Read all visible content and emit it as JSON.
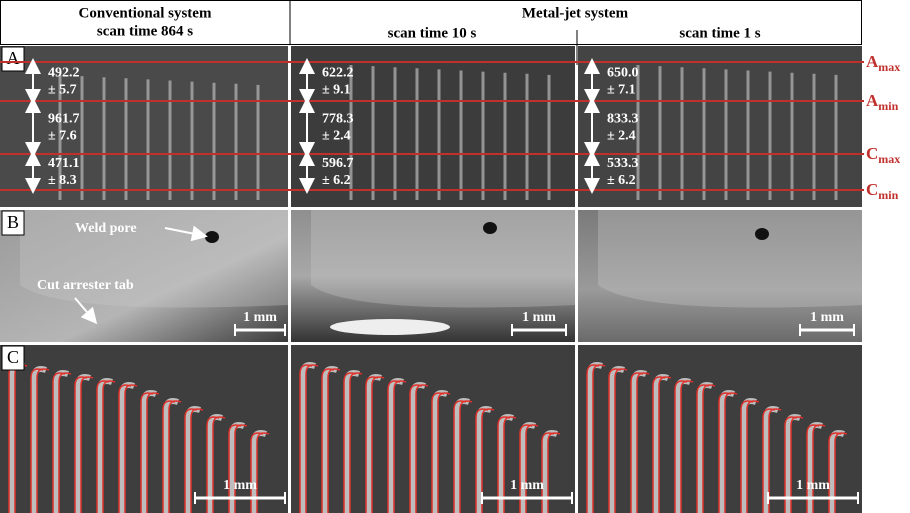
{
  "header": {
    "left": {
      "line1": "Conventional system",
      "line2": "scan time 864 s"
    },
    "right": {
      "title": "Metal-jet system",
      "columns": [
        "scan time 10 s",
        "scan time 1 s"
      ]
    }
  },
  "row_labels": [
    "A",
    "B",
    "C"
  ],
  "level_labels": [
    {
      "base": "A",
      "sub": "max"
    },
    {
      "base": "A",
      "sub": "min"
    },
    {
      "base": "C",
      "sub": "max"
    },
    {
      "base": "C",
      "sub": "min"
    }
  ],
  "measurements": [
    [
      {
        "value": "492.2",
        "error": "± 5.7"
      },
      {
        "value": "961.7",
        "error": "± 7.6"
      },
      {
        "value": "471.1",
        "error": "± 8.3"
      }
    ],
    [
      {
        "value": "622.2",
        "error": "± 9.1"
      },
      {
        "value": "778.3",
        "error": "± 2.4"
      },
      {
        "value": "596.7",
        "error": "± 6.2"
      }
    ],
    [
      {
        "value": "650.0",
        "error": "± 7.1"
      },
      {
        "value": "833.3",
        "error": "± 2.4"
      },
      {
        "value": "533.3",
        "error": "± 6.2"
      }
    ]
  ],
  "annotations": {
    "weld_pore": "Weld pore",
    "cut_arrester_tab": "Cut arrester tab"
  },
  "scale_bar": "1 mm"
}
